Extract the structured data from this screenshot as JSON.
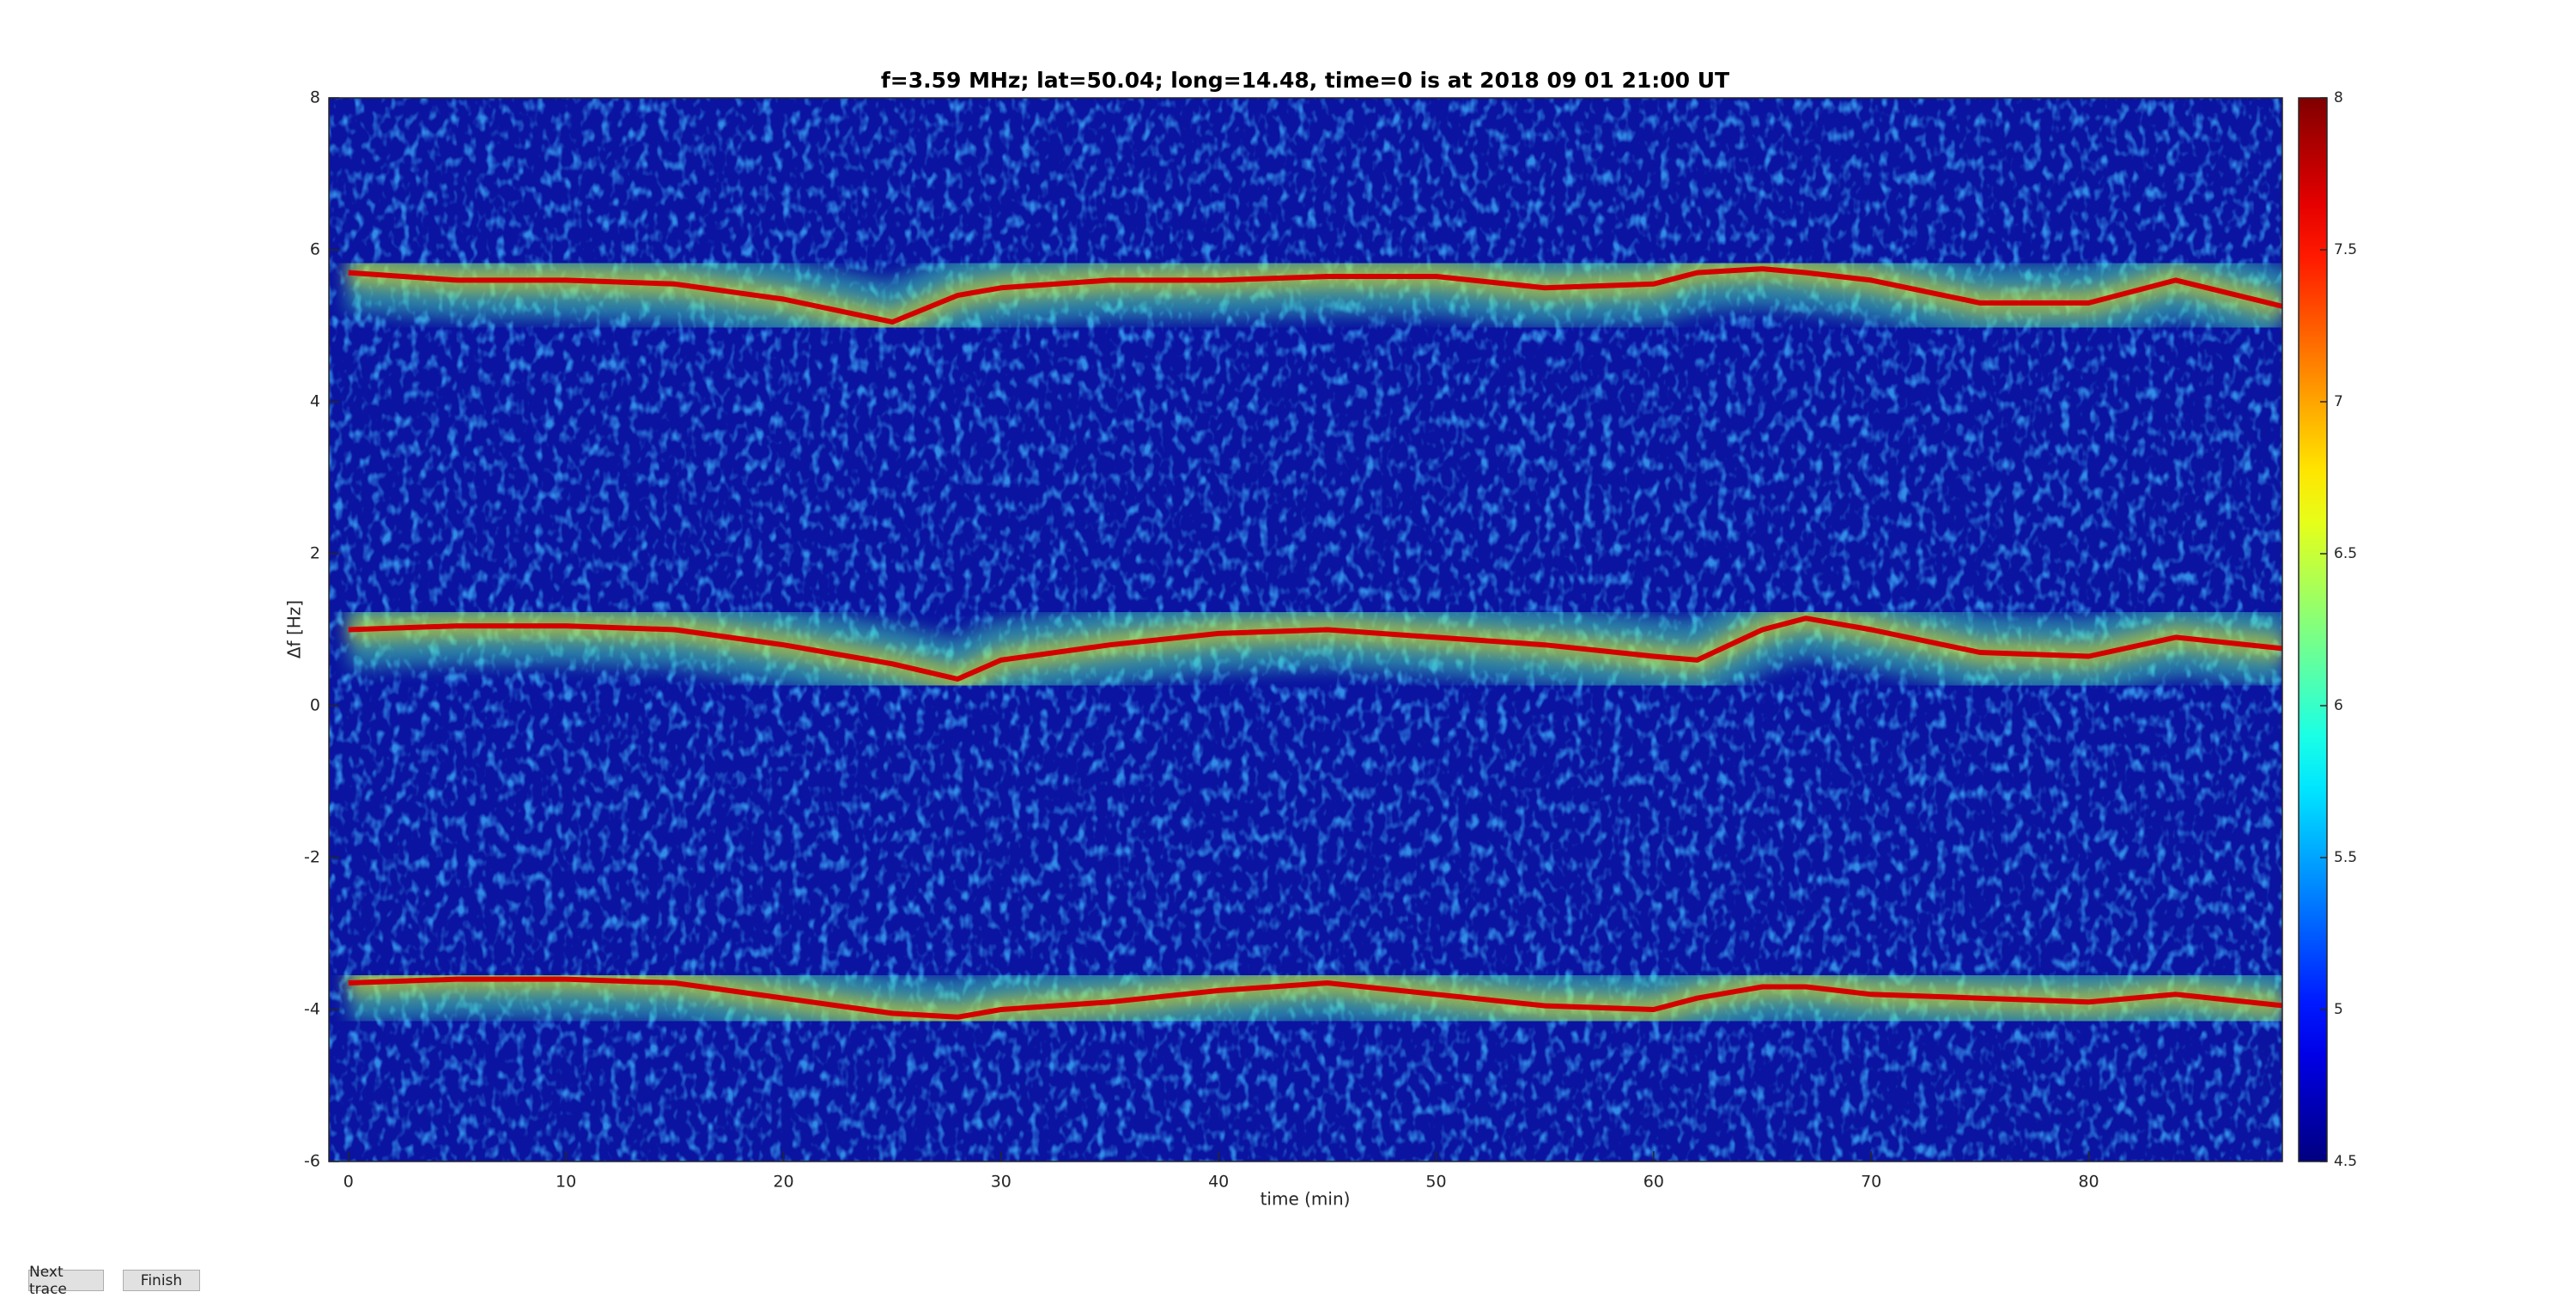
{
  "chart_data": {
    "type": "spectrogram",
    "title": "f=3.59 MHz;  lat=50.04; long=14.48, time=0 is at 2018 09 01 21:00 UT",
    "xlabel": "time (min)",
    "ylabel": "Δf [Hz]",
    "x": [
      0,
      5,
      10,
      15,
      20,
      25,
      28,
      30,
      35,
      40,
      45,
      50,
      55,
      60,
      62,
      65,
      67,
      70,
      75,
      80,
      84,
      89
    ],
    "series": [
      {
        "color": "#d40000",
        "values": [
          5.7,
          5.6,
          5.6,
          5.55,
          5.35,
          5.05,
          5.4,
          5.5,
          5.6,
          5.6,
          5.65,
          5.65,
          5.5,
          5.55,
          5.7,
          5.75,
          5.7,
          5.6,
          5.3,
          5.3,
          5.6,
          5.25
        ]
      },
      {
        "color": "#d40000",
        "values": [
          1.0,
          1.05,
          1.05,
          1.0,
          0.8,
          0.55,
          0.35,
          0.6,
          0.8,
          0.95,
          1.0,
          0.9,
          0.8,
          0.65,
          0.6,
          1.0,
          1.15,
          1.0,
          0.7,
          0.65,
          0.9,
          0.75
        ]
      },
      {
        "color": "#d40000",
        "values": [
          -3.65,
          -3.6,
          -3.6,
          -3.65,
          -3.85,
          -4.05,
          -4.1,
          -4.0,
          -3.9,
          -3.75,
          -3.65,
          -3.8,
          -3.95,
          -4.0,
          -3.85,
          -3.7,
          -3.7,
          -3.8,
          -3.85,
          -3.9,
          -3.8,
          -3.95
        ]
      }
    ],
    "xlim": [
      -0.9,
      88.9
    ],
    "ylim": [
      -6,
      8
    ],
    "xticks": [
      0,
      10,
      20,
      30,
      40,
      50,
      60,
      70,
      80
    ],
    "yticks": [
      -6,
      -4,
      -2,
      0,
      2,
      4,
      6,
      8
    ],
    "colormap": "jet",
    "background_color": "#0a14a0",
    "clim": [
      4.5,
      8
    ],
    "cticks": [
      4.5,
      5,
      5.5,
      6,
      6.5,
      7,
      7.5,
      8
    ],
    "grid": false
  },
  "buttons": [
    "Next trace",
    "Finish"
  ]
}
